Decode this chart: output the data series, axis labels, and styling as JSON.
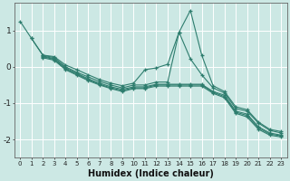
{
  "xlabel": "Humidex (Indice chaleur)",
  "ylabel": "",
  "bg_color": "#cce8e4",
  "line_color": "#2e7d6e",
  "grid_color": "#ffffff",
  "xlim": [
    -0.5,
    23.5
  ],
  "ylim": [
    -2.5,
    1.75
  ],
  "xticks": [
    0,
    1,
    2,
    3,
    4,
    5,
    6,
    7,
    8,
    9,
    10,
    11,
    12,
    13,
    14,
    15,
    16,
    17,
    18,
    19,
    20,
    21,
    22,
    23
  ],
  "yticks": [
    -2,
    -1,
    0,
    1
  ],
  "lines": [
    {
      "x": [
        0,
        1,
        2,
        3,
        4,
        5,
        6,
        7,
        8,
        9,
        10,
        11,
        12,
        13,
        14,
        15,
        16,
        17,
        18,
        19,
        20,
        21,
        22,
        23
      ],
      "y": [
        1.25,
        0.78,
        0.32,
        0.28,
        0.05,
        -0.08,
        -0.22,
        -0.35,
        -0.45,
        -0.52,
        -0.45,
        -0.08,
        -0.03,
        0.07,
        0.95,
        1.55,
        0.32,
        -0.52,
        -0.68,
        -1.1,
        -1.18,
        -1.52,
        -1.72,
        -1.78
      ]
    },
    {
      "x": [
        1,
        2,
        3,
        4,
        5,
        6,
        7,
        8,
        9,
        10,
        11,
        12,
        13,
        14,
        15,
        16,
        17,
        18,
        19,
        20,
        21,
        22,
        23
      ],
      "y": [
        0.78,
        0.32,
        0.25,
        0.0,
        -0.15,
        -0.28,
        -0.4,
        -0.5,
        -0.58,
        -0.5,
        -0.5,
        -0.42,
        -0.42,
        0.95,
        0.22,
        -0.22,
        -0.58,
        -0.72,
        -1.15,
        -1.22,
        -1.55,
        -1.75,
        -1.82
      ]
    },
    {
      "x": [
        2,
        3,
        4,
        5,
        6,
        7,
        8,
        9,
        10,
        11,
        12,
        13,
        14,
        15,
        16,
        17,
        18,
        19,
        20,
        21,
        22,
        23
      ],
      "y": [
        0.3,
        0.22,
        -0.03,
        -0.18,
        -0.33,
        -0.45,
        -0.55,
        -0.62,
        -0.55,
        -0.55,
        -0.48,
        -0.48,
        -0.48,
        -0.48,
        -0.48,
        -0.68,
        -0.78,
        -1.22,
        -1.3,
        -1.65,
        -1.82,
        -1.88
      ]
    },
    {
      "x": [
        2,
        3,
        4,
        5,
        6,
        7,
        8,
        9,
        10,
        11,
        12,
        13,
        14,
        15,
        16,
        17,
        18,
        19,
        20,
        21,
        22,
        23
      ],
      "y": [
        0.28,
        0.2,
        -0.06,
        -0.2,
        -0.36,
        -0.48,
        -0.58,
        -0.65,
        -0.58,
        -0.58,
        -0.5,
        -0.5,
        -0.5,
        -0.5,
        -0.5,
        -0.7,
        -0.82,
        -1.25,
        -1.34,
        -1.68,
        -1.85,
        -1.9
      ]
    },
    {
      "x": [
        2,
        3,
        4,
        5,
        6,
        7,
        8,
        9,
        10,
        11,
        12,
        13,
        14,
        15,
        16,
        17,
        18,
        19,
        20,
        21,
        22,
        23
      ],
      "y": [
        0.25,
        0.18,
        -0.08,
        -0.23,
        -0.38,
        -0.5,
        -0.6,
        -0.68,
        -0.6,
        -0.6,
        -0.53,
        -0.53,
        -0.53,
        -0.53,
        -0.53,
        -0.73,
        -0.85,
        -1.28,
        -1.38,
        -1.72,
        -1.88,
        -1.93
      ]
    }
  ]
}
